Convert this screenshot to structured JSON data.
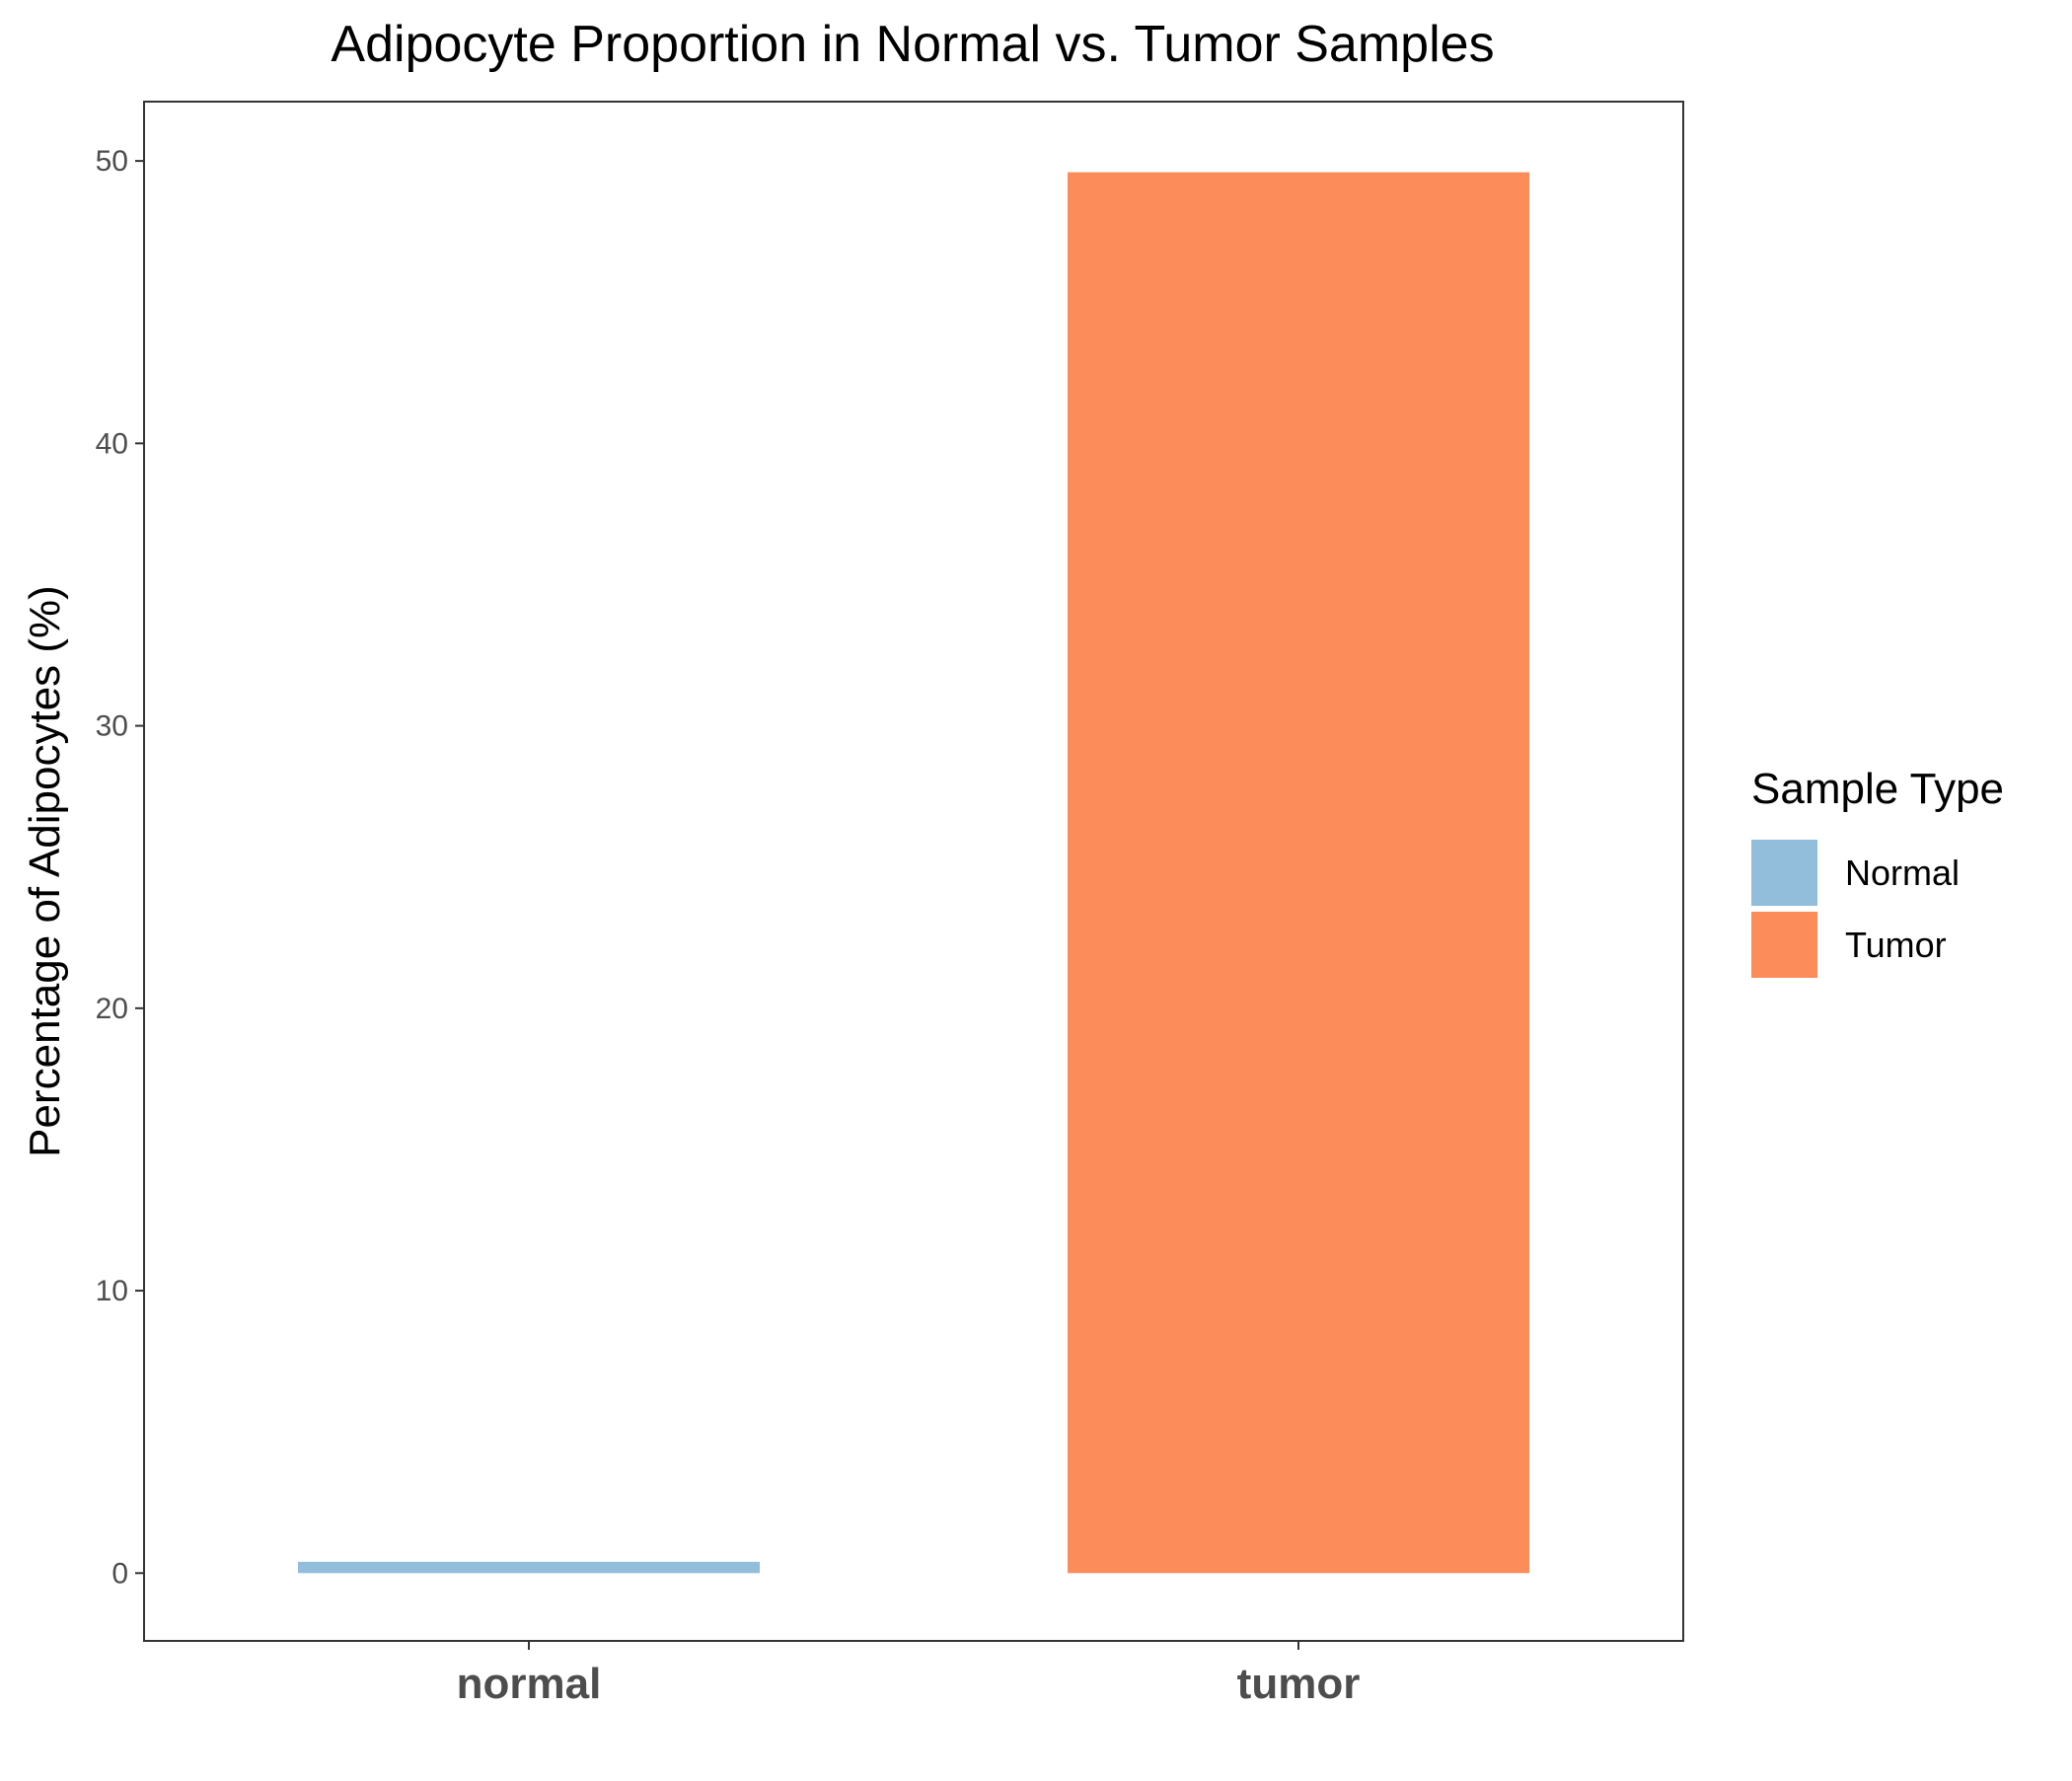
{
  "chart_data": {
    "type": "bar",
    "title": "Adipocyte Proportion in Normal vs. Tumor Samples",
    "xlabel": "",
    "ylabel": "Percentage of Adipocytes (%)",
    "categories": [
      "normal",
      "tumor"
    ],
    "values": [
      0.4,
      49.6
    ],
    "colors": [
      "#92bddb",
      "#fc8d5a"
    ],
    "y_ticks": [
      0,
      10,
      20,
      30,
      40,
      50
    ],
    "ylim": [
      -2.4,
      52.1
    ],
    "grid": false,
    "legend": {
      "title": "Sample Type",
      "position": "right",
      "entries": [
        {
          "label": "Normal",
          "color": "#92bddb"
        },
        {
          "label": "Tumor",
          "color": "#fc8d5a"
        }
      ]
    }
  }
}
